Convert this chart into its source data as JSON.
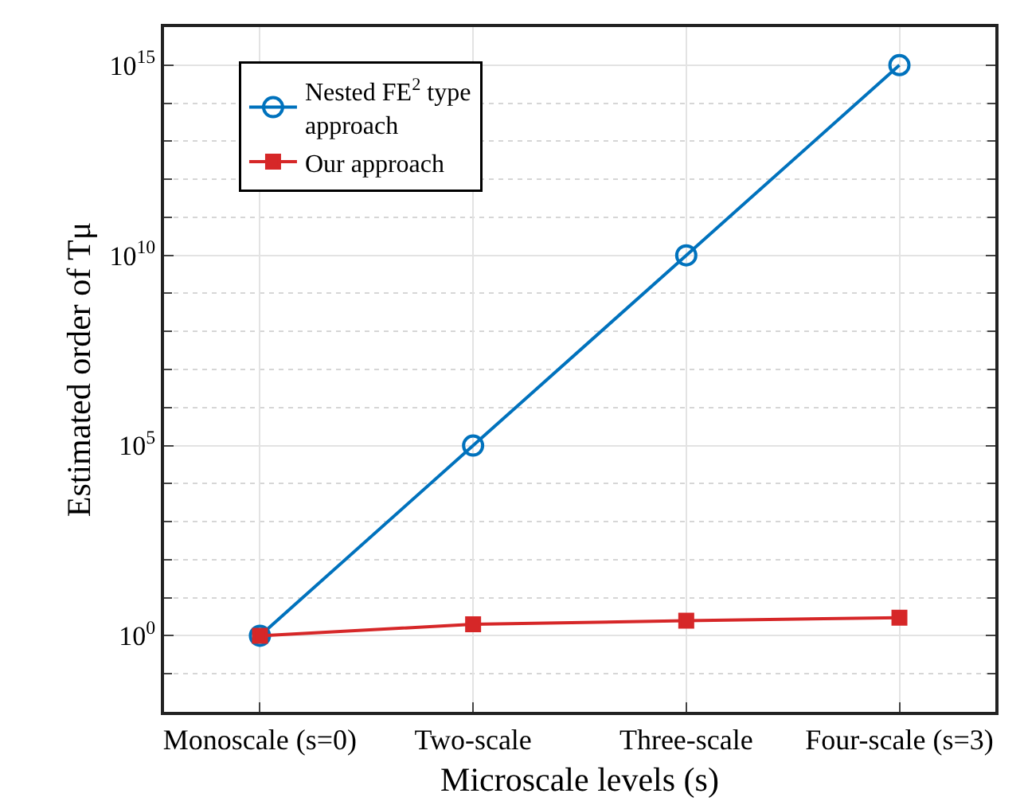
{
  "chart_data": {
    "type": "line",
    "xlabel": "Microscale levels (s)",
    "ylabel": "Estimated order of Tμ",
    "categories": [
      "Monoscale (s=0)",
      "Two-scale",
      "Three-scale",
      "Four-scale (s=3)"
    ],
    "series": [
      {
        "name": "Nested FE$^{2}$ type\napproach",
        "color": "#0072bd",
        "values": [
          1,
          100000,
          10000000000,
          1000000000000000
        ],
        "marker": "circle"
      },
      {
        "name": "Our approach",
        "color": "#d62728",
        "values": [
          1,
          2,
          2.5,
          3
        ],
        "marker": "square"
      }
    ],
    "log": "y",
    "ylim": [
      0.01,
      10000000000000000
    ],
    "yticks": [
      {
        "value": 1,
        "label": "10$^{0}$"
      },
      {
        "value": 100000,
        "label": "10$^{5}$"
      },
      {
        "value": 10000000000,
        "label": "10$^{10}$"
      },
      {
        "value": 1000000000000000,
        "label": "10$^{15}$"
      }
    ],
    "grid": true,
    "legend": "top left",
    "line_style": "solid"
  }
}
